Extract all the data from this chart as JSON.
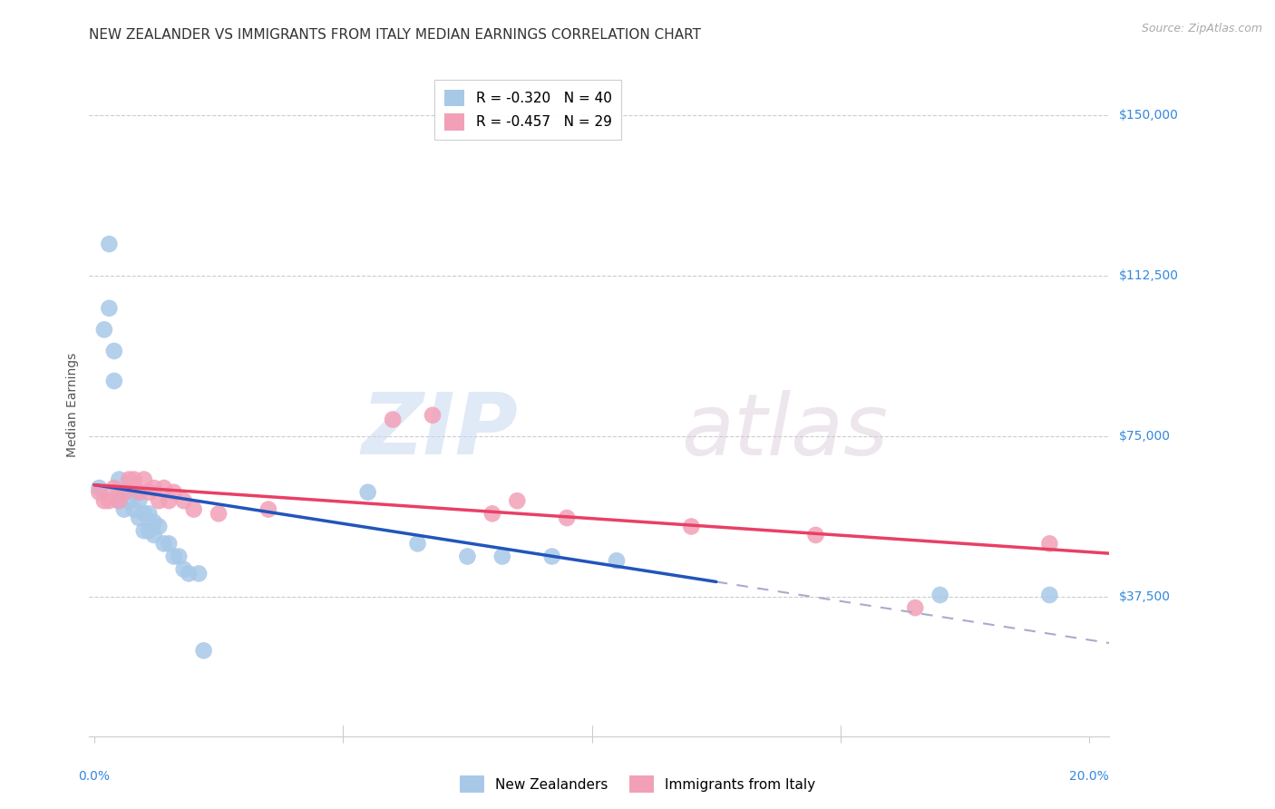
{
  "title": "NEW ZEALANDER VS IMMIGRANTS FROM ITALY MEDIAN EARNINGS CORRELATION CHART",
  "source": "Source: ZipAtlas.com",
  "ylabel": "Median Earnings",
  "ytick_labels": [
    "$37,500",
    "$75,000",
    "$112,500",
    "$150,000"
  ],
  "ytick_values": [
    37500,
    75000,
    112500,
    150000
  ],
  "ymin": 5000,
  "ymax": 160000,
  "xmin": -0.001,
  "xmax": 0.204,
  "watermark_line1": "ZIP",
  "watermark_line2": "atlas",
  "legend1_text": "R = -0.320   N = 40",
  "legend2_text": "R = -0.457   N = 29",
  "series1_color": "#a8c8e8",
  "series2_color": "#f2a0b8",
  "line1_color": "#2255bb",
  "line2_color": "#e84065",
  "line_ext_color": "#aaaacc",
  "background_color": "#ffffff",
  "blue_scatter_x": [
    0.001,
    0.002,
    0.003,
    0.003,
    0.004,
    0.004,
    0.005,
    0.005,
    0.005,
    0.006,
    0.006,
    0.007,
    0.007,
    0.008,
    0.008,
    0.009,
    0.009,
    0.01,
    0.01,
    0.011,
    0.011,
    0.012,
    0.012,
    0.013,
    0.014,
    0.015,
    0.016,
    0.017,
    0.018,
    0.019,
    0.021,
    0.022,
    0.055,
    0.065,
    0.075,
    0.082,
    0.092,
    0.105,
    0.17,
    0.192
  ],
  "blue_scatter_y": [
    63000,
    100000,
    120000,
    105000,
    95000,
    88000,
    65000,
    62000,
    60000,
    62000,
    58000,
    62000,
    60000,
    62000,
    58000,
    60000,
    56000,
    57000,
    53000,
    57000,
    53000,
    55000,
    52000,
    54000,
    50000,
    50000,
    47000,
    47000,
    44000,
    43000,
    43000,
    25000,
    62000,
    50000,
    47000,
    47000,
    47000,
    46000,
    38000,
    38000
  ],
  "pink_scatter_x": [
    0.001,
    0.002,
    0.003,
    0.004,
    0.005,
    0.006,
    0.007,
    0.008,
    0.009,
    0.01,
    0.011,
    0.012,
    0.013,
    0.014,
    0.015,
    0.016,
    0.018,
    0.02,
    0.025,
    0.035,
    0.06,
    0.068,
    0.08,
    0.085,
    0.095,
    0.12,
    0.145,
    0.165,
    0.192
  ],
  "pink_scatter_y": [
    62000,
    60000,
    60000,
    63000,
    60000,
    62000,
    65000,
    65000,
    62000,
    65000,
    62000,
    63000,
    60000,
    63000,
    60000,
    62000,
    60000,
    58000,
    57000,
    58000,
    79000,
    80000,
    57000,
    60000,
    56000,
    54000,
    52000,
    35000,
    50000
  ],
  "title_fontsize": 11,
  "axis_label_fontsize": 10,
  "tick_fontsize": 10,
  "legend_fontsize": 11,
  "source_fontsize": 9
}
